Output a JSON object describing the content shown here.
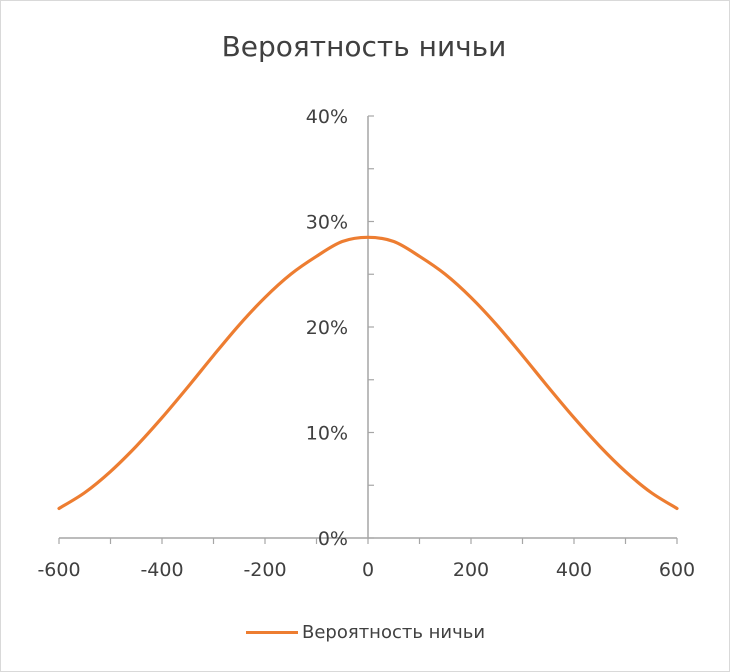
{
  "chart_data": {
    "type": "line",
    "title": "Вероятность ничьи",
    "xlabel": "",
    "ylabel": "",
    "xlim": [
      -600,
      600
    ],
    "ylim": [
      0,
      40
    ],
    "x_ticks": [
      "-600",
      "-400",
      "-200",
      "0",
      "200",
      "400",
      "600"
    ],
    "y_ticks": [
      "0%",
      "10%",
      "20%",
      "30%",
      "40%"
    ],
    "series": [
      {
        "name": "Вероятность ничьи",
        "color": "#ED7D31",
        "x": [
          -600,
          -550,
          -500,
          -450,
          -400,
          -350,
          -300,
          -250,
          -200,
          -150,
          -100,
          -50,
          0,
          50,
          100,
          150,
          200,
          250,
          300,
          350,
          400,
          450,
          500,
          550,
          600
        ],
        "y": [
          2.8,
          4.3,
          6.3,
          8.7,
          11.4,
          14.3,
          17.3,
          20.2,
          22.8,
          25.0,
          26.7,
          28.1,
          28.5,
          28.1,
          26.7,
          25.0,
          22.8,
          20.2,
          17.3,
          14.3,
          11.4,
          8.7,
          6.3,
          4.3,
          2.8
        ]
      }
    ],
    "legend": {
      "position": "bottom",
      "label": "Вероятность ничьи"
    },
    "grid": false
  }
}
